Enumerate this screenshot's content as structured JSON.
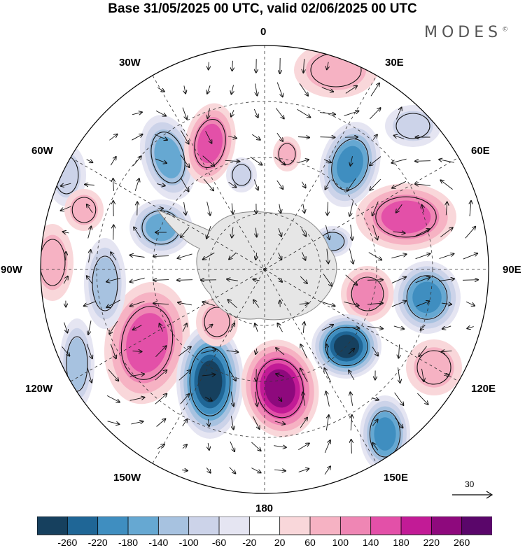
{
  "header": {
    "title": "Base 31/05/2025 00 UTC, valid 02/06/2025 00 UTC",
    "brand": "MODES",
    "brand_mark": "©"
  },
  "map": {
    "projection": "south-polar-stereographic",
    "longitude_labels": {
      "top": "0",
      "top_right": "30E",
      "upper_right": "60E",
      "right": "90E",
      "lower_right": "120E",
      "bottom_right": "150E",
      "bottom": "180",
      "bottom_left": "150W",
      "lower_left": "120W",
      "left": "90W",
      "upper_left": "60W",
      "top_left": "30W"
    },
    "reference_vector": "30",
    "colors": {
      "continent": "#e6e6e6",
      "coast": "#888888",
      "grid": "#333333"
    }
  },
  "colorbar": {
    "colors": [
      "#16405e",
      "#1f6696",
      "#3f8ec0",
      "#66a8d2",
      "#a7c2e0",
      "#ccd3e9",
      "#e5e5f2",
      "#ffffff",
      "#f9d7da",
      "#f6b2c3",
      "#ef86b4",
      "#e350a8",
      "#c21b96",
      "#8e097d",
      "#5a066a"
    ],
    "tick_labels": [
      "-260",
      "-220",
      "-180",
      "-140",
      "-100",
      "-60",
      "-20",
      "20",
      "60",
      "100",
      "140",
      "180",
      "220",
      "260"
    ]
  }
}
